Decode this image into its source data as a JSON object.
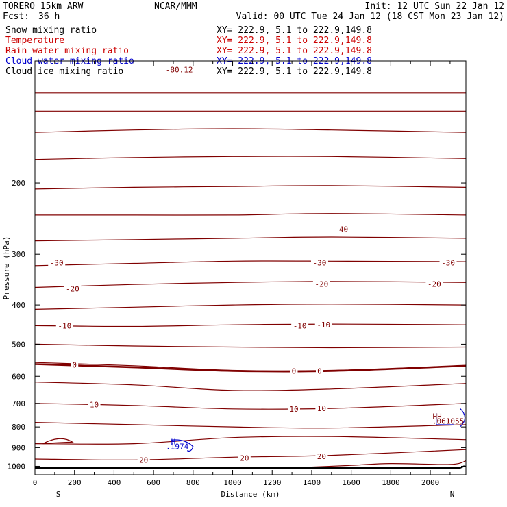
{
  "header": {
    "model": "TORERO  15km ARW",
    "center": "NCAR/MMM",
    "init": "Init: 12 UTC Sun 22 Jan 12",
    "fcst_label": "Fcst:",
    "fcst_value": "36 h",
    "valid": "Valid: 00 UTC Tue 24 Jan 12 (18 CST Mon 23 Jan 12)"
  },
  "legend": [
    {
      "label": "Snow mixing ratio",
      "xy": "XY= 222.9,  5.1 to 222.9,149.8",
      "color": "#000000",
      "xy_color": "#000000"
    },
    {
      "label": "Temperature",
      "xy": "XY= 222.9,  5.1 to 222.9,149.8",
      "color": "#cc0000",
      "xy_color": "#cc0000"
    },
    {
      "label": "Rain water mixing ratio",
      "xy": "XY= 222.9,  5.1 to 222.9,149.8",
      "color": "#cc0000",
      "xy_color": "#cc0000"
    },
    {
      "label": "Cloud water mixing ratio",
      "xy": "XY= 222.9,  5.1 to 222.9,149.8",
      "color": "#0000cc",
      "xy_color": "#0000cc"
    },
    {
      "label": "Cloud ice mixing ratio",
      "xy": "XY= 222.9,  5.1 to 222.9,149.8",
      "color": "#000000",
      "xy_color": "#000000"
    }
  ],
  "chart_data": {
    "type": "contour-cross-section",
    "xlabel": "Distance (km)",
    "ylabel": "Pressure (hPa)",
    "xlim": [
      0,
      2180
    ],
    "ylim": [
      1050,
      100
    ],
    "y_scale": "log",
    "x_ticks": [
      0,
      200,
      400,
      600,
      800,
      1000,
      1200,
      1400,
      1600,
      1800,
      2000
    ],
    "y_ticks": [
      200,
      300,
      400,
      500,
      600,
      700,
      800,
      900,
      1000
    ],
    "x_end_labels": {
      "left": "S",
      "right": "N"
    },
    "temperature_color": "#800000",
    "cloud_color": "#0000cc",
    "isotherms": [
      {
        "x": [
          0,
          2180
        ],
        "p": [
          120,
          120
        ]
      },
      {
        "x": [
          0,
          2180
        ],
        "p": [
          133,
          133
        ]
      },
      {
        "x": [
          0,
          500,
          1000,
          1500,
          2180
        ],
        "p": [
          150,
          148,
          147,
          148,
          150
        ]
      },
      {
        "x": [
          0,
          500,
          1000,
          1500,
          2180
        ],
        "p": [
          175,
          173,
          172,
          172,
          174
        ]
      },
      {
        "x": [
          0,
          500,
          1000,
          1500,
          2180
        ],
        "p": [
          207,
          205,
          204,
          203,
          205
        ]
      },
      {
        "x": [
          0,
          500,
          1000,
          1500,
          2180
        ],
        "p": [
          240,
          240,
          240,
          238,
          240
        ]
      },
      {
        "x": [
          0,
          500,
          1000,
          1500,
          2180
        ],
        "p": [
          278,
          276,
          274,
          272,
          274
        ]
      },
      {
        "x": [
          0,
          500,
          1000,
          1500,
          2180
        ],
        "p": [
          320,
          316,
          312,
          312,
          313
        ]
      },
      {
        "x": [
          0,
          500,
          1000,
          1500,
          2180
        ],
        "p": [
          362,
          356,
          352,
          350,
          352
        ]
      },
      {
        "x": [
          0,
          500,
          1000,
          1500,
          2180
        ],
        "p": [
          410,
          405,
          400,
          398,
          400
        ]
      },
      {
        "x": [
          0,
          500,
          1000,
          1500,
          2180
        ],
        "p": [
          450,
          452,
          448,
          446,
          448
        ]
      },
      {
        "x": [
          0,
          500,
          1000,
          1500,
          2180
        ],
        "p": [
          500,
          505,
          508,
          510,
          508
        ]
      },
      {
        "x": [
          0,
          500,
          1000,
          1500,
          2180
        ],
        "p": [
          555,
          565,
          580,
          580,
          565
        ]
      },
      {
        "x": [
          0,
          500,
          1000,
          1500,
          2180
        ],
        "p": [
          620,
          630,
          650,
          645,
          625
        ]
      },
      {
        "x": [
          0,
          500,
          1000,
          1500,
          2180
        ],
        "p": [
          700,
          708,
          722,
          720,
          700
        ]
      },
      {
        "x": [
          0,
          500,
          1000,
          1500,
          2180
        ],
        "p": [
          780,
          790,
          800,
          805,
          790
        ]
      },
      {
        "x": [
          0,
          500,
          1000,
          1500,
          2180
        ],
        "p": [
          880,
          880,
          850,
          845,
          860
        ]
      },
      {
        "x": [
          0,
          500,
          1000,
          1500,
          2180
        ],
        "p": [
          960,
          965,
          950,
          940,
          910
        ]
      }
    ],
    "freezing_level": {
      "x": [
        0,
        500,
        1000,
        1500,
        2180
      ],
      "p": [
        560,
        570,
        582,
        582,
        565
      ]
    },
    "contour_labels": [
      {
        "text": "-80.12",
        "x": 730,
        "p": 105,
        "color": "#800000"
      },
      {
        "text": "-40",
        "x": 1550,
        "p": 260,
        "color": "#800000"
      },
      {
        "text": "-30",
        "x": 110,
        "p": 315,
        "color": "#800000"
      },
      {
        "text": "-30",
        "x": 1440,
        "p": 315,
        "color": "#800000"
      },
      {
        "text": "-30",
        "x": 2090,
        "p": 315,
        "color": "#800000"
      },
      {
        "text": "-20",
        "x": 190,
        "p": 365,
        "color": "#800000"
      },
      {
        "text": "-20",
        "x": 1450,
        "p": 355,
        "color": "#800000"
      },
      {
        "text": "-20",
        "x": 2020,
        "p": 355,
        "color": "#800000"
      },
      {
        "text": "-10",
        "x": 150,
        "p": 450,
        "color": "#800000"
      },
      {
        "text": "-10",
        "x": 1340,
        "p": 450,
        "color": "#800000"
      },
      {
        "text": "-10",
        "x": 1460,
        "p": 448,
        "color": "#800000"
      },
      {
        "text": "0",
        "x": 200,
        "p": 562,
        "color": "#800000"
      },
      {
        "text": "0",
        "x": 1310,
        "p": 582,
        "color": "#800000"
      },
      {
        "text": "0",
        "x": 1440,
        "p": 582,
        "color": "#800000"
      },
      {
        "text": "10",
        "x": 300,
        "p": 705,
        "color": "#800000"
      },
      {
        "text": "10",
        "x": 1310,
        "p": 722,
        "color": "#800000"
      },
      {
        "text": "10",
        "x": 1450,
        "p": 720,
        "color": "#800000"
      },
      {
        "text": "20",
        "x": 550,
        "p": 965,
        "color": "#800000"
      },
      {
        "text": "20",
        "x": 1060,
        "p": 955,
        "color": "#800000"
      },
      {
        "text": "20",
        "x": 1450,
        "p": 945,
        "color": "#800000"
      }
    ],
    "extrema_labels": [
      {
        "text": "H",
        "x": 700,
        "p": 870,
        "color": "#0000cc"
      },
      {
        "text": ".1974",
        "x": 720,
        "p": 893,
        "color": "#0000cc"
      },
      {
        "text": "HH",
        "x": 2035,
        "p": 752,
        "color": "#800000"
      },
      {
        "text": ".061055",
        "x": 2090,
        "p": 773,
        "color": "#800000"
      }
    ]
  }
}
